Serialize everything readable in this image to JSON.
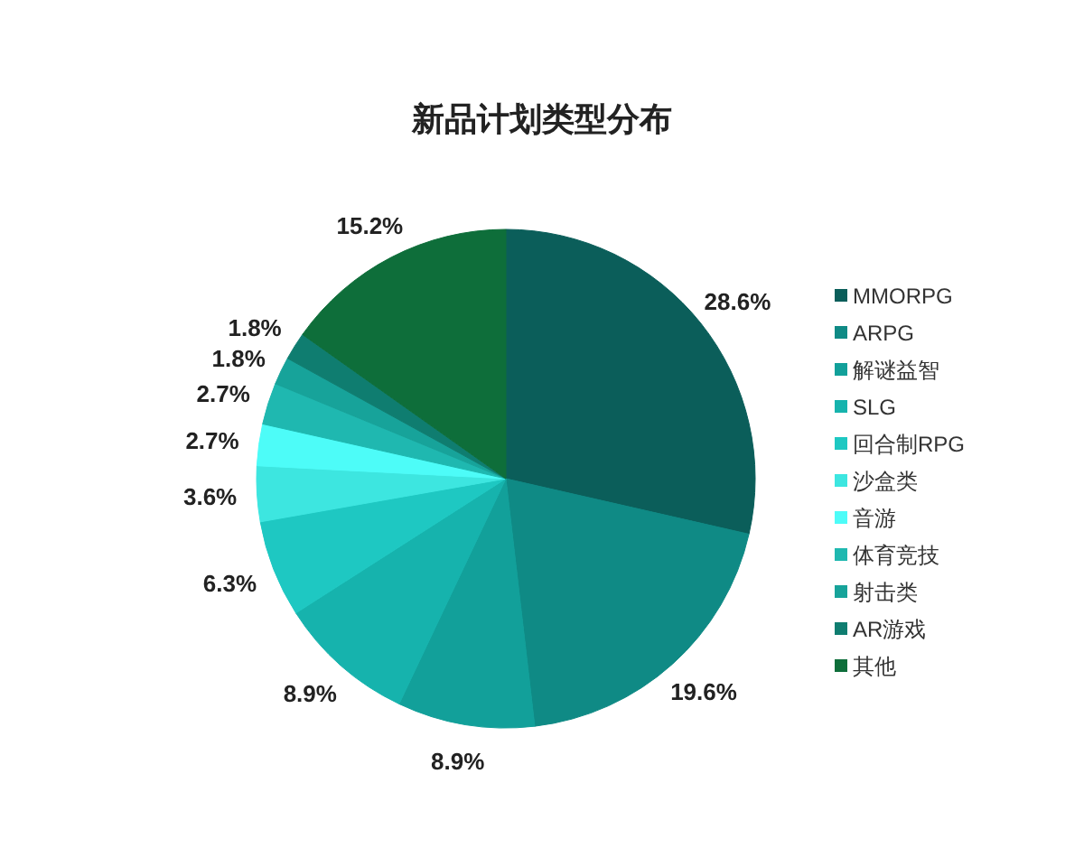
{
  "chart_data": {
    "type": "pie",
    "title": "新品计划类型分布",
    "categories": [
      "MMORPG",
      "ARPG",
      "解谜益智",
      "SLG",
      "回合制RPG",
      "沙盒类",
      "音游",
      "体育竞技",
      "射击类",
      "AR游戏",
      "其他"
    ],
    "values": [
      28.6,
      19.6,
      8.9,
      8.9,
      6.3,
      3.6,
      2.7,
      2.7,
      1.8,
      1.8,
      15.2
    ],
    "colors": [
      "#0b5e5a",
      "#0f8a85",
      "#12a09a",
      "#16b3ad",
      "#1ec8c2",
      "#3de6e0",
      "#4dfcf8",
      "#1fb8b0",
      "#17a39a",
      "#0f7d70",
      "#0e6e3a"
    ],
    "value_labels": [
      "28.6%",
      "19.6%",
      "8.9%",
      "8.9%",
      "6.3%",
      "3.6%",
      "2.7%",
      "2.7%",
      "1.8%",
      "1.8%",
      "15.2%"
    ],
    "legend": "right"
  }
}
